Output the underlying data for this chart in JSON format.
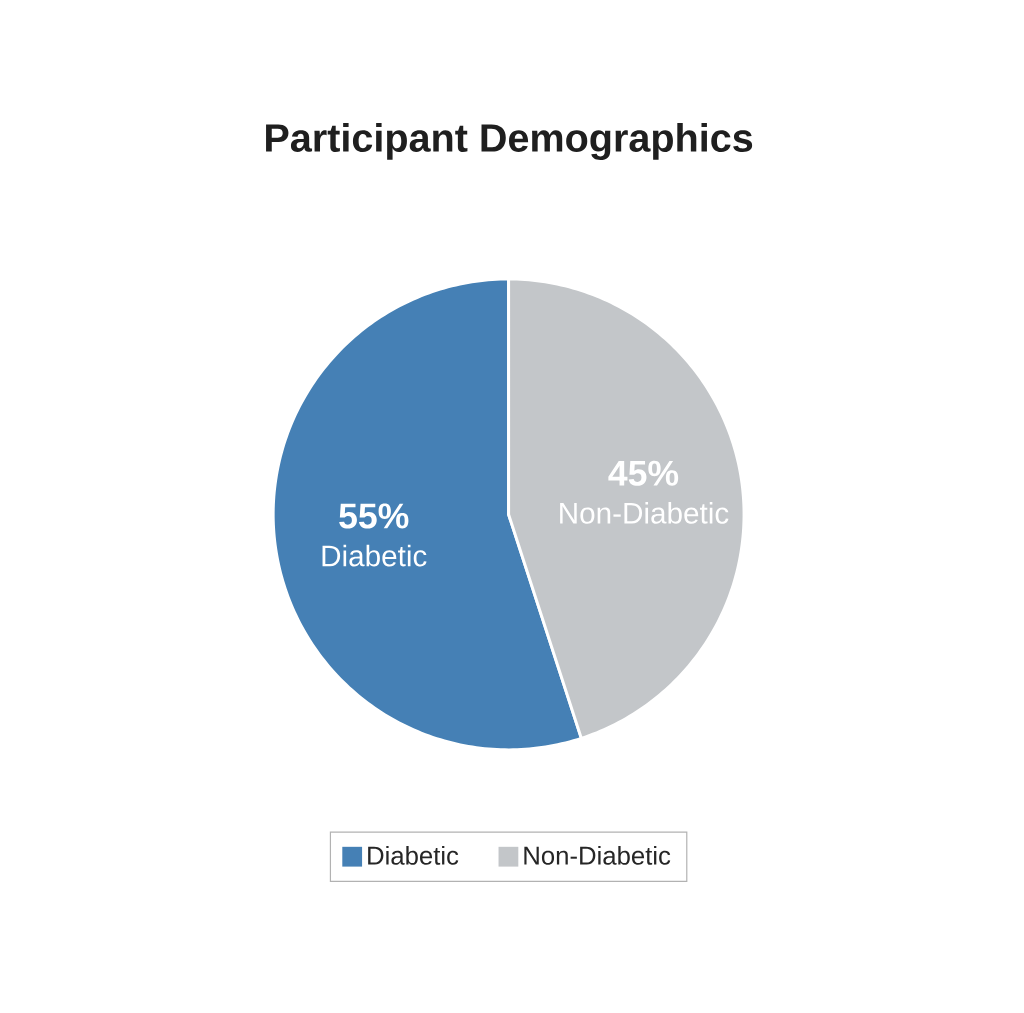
{
  "chart_data": {
    "type": "pie",
    "title": "Participant Demographics",
    "categories": [
      "Diabetic",
      "Non-Diabetic"
    ],
    "values": [
      55,
      45
    ],
    "colors": [
      "#4580b5",
      "#c3c6c9"
    ],
    "value_labels": [
      "55%",
      "45%"
    ],
    "legend": "bottom"
  }
}
